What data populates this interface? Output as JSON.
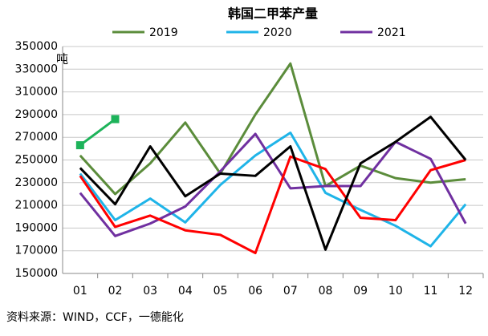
{
  "chart_data": {
    "type": "line",
    "title": "韩国二甲苯产量",
    "y_unit_label": "吨",
    "source": "资料来源：WIND，CCF，一德能化",
    "categories": [
      "01",
      "02",
      "03",
      "04",
      "05",
      "06",
      "07",
      "08",
      "09",
      "10",
      "11",
      "12"
    ],
    "series": [
      {
        "name": "2019",
        "color": "#5b8c3b",
        "values": [
          254000,
          220000,
          247000,
          283000,
          238000,
          290000,
          335000,
          227000,
          245000,
          234000,
          230000,
          233000
        ]
      },
      {
        "name": "2020",
        "color": "#1fb4e8",
        "values": [
          238000,
          197000,
          216000,
          195000,
          228000,
          254000,
          274000,
          221000,
          206000,
          192000,
          174000,
          211000
        ]
      },
      {
        "name": "2021",
        "color": "#7030a0",
        "values": [
          221000,
          183000,
          194000,
          209000,
          240000,
          273000,
          225000,
          227000,
          227000,
          266000,
          251000,
          194000
        ]
      },
      {
        "color": "#ff0000",
        "values": [
          236000,
          191000,
          201000,
          188000,
          184000,
          168000,
          253000,
          242000,
          199000,
          197000,
          241000,
          250000
        ]
      },
      {
        "color": "#000000",
        "values": [
          243000,
          211000,
          262000,
          218000,
          238000,
          236000,
          262000,
          171000,
          247000,
          266000,
          288000,
          250000
        ]
      },
      {
        "color": "#1db35a",
        "marker": "square",
        "values": [
          263000,
          286000,
          null,
          null,
          null,
          null,
          null,
          null,
          null,
          null,
          null,
          null
        ]
      }
    ],
    "ylim": [
      150000,
      350000
    ],
    "yticks": [
      150000,
      170000,
      190000,
      210000,
      230000,
      250000,
      270000,
      290000,
      310000,
      330000,
      350000
    ],
    "grid": true
  }
}
